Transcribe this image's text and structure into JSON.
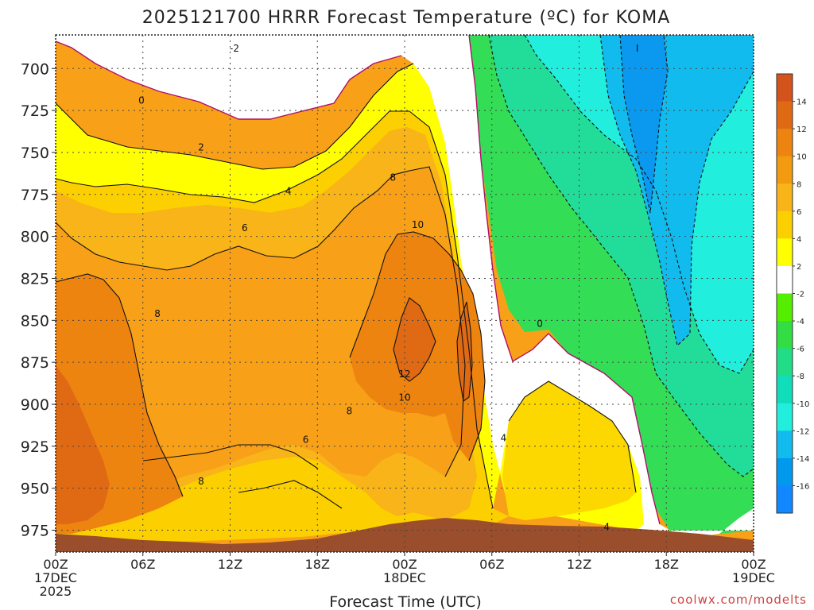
{
  "chart_data": {
    "type": "heatmap",
    "title": "2025121700 HRRR Forecast Temperature (ºC) for KOMA",
    "xlabel": "Forecast Time (UTC)",
    "ylabel": "",
    "y_axis": {
      "ticks": [
        "700",
        "725",
        "750",
        "775",
        "800",
        "825",
        "850",
        "875",
        "900",
        "925",
        "950",
        "975"
      ],
      "range": [
        680,
        988
      ],
      "inverted": true
    },
    "x_axis": {
      "range_hours": [
        0,
        48
      ],
      "ticks": [
        {
          "hour": 0,
          "lines": [
            "00Z",
            "17DEC",
            "2025"
          ]
        },
        {
          "hour": 6,
          "lines": [
            "06Z"
          ]
        },
        {
          "hour": 12,
          "lines": [
            "12Z"
          ]
        },
        {
          "hour": 18,
          "lines": [
            "18Z"
          ]
        },
        {
          "hour": 24,
          "lines": [
            "00Z",
            "18DEC"
          ]
        },
        {
          "hour": 30,
          "lines": [
            "06Z"
          ]
        },
        {
          "hour": 36,
          "lines": [
            "12Z"
          ]
        },
        {
          "hour": 42,
          "lines": [
            "18Z"
          ]
        },
        {
          "hour": 48,
          "lines": [
            "00Z",
            "19DEC"
          ]
        }
      ]
    },
    "grid": true,
    "colorbar": {
      "labels": [
        "14",
        "12",
        "10",
        "8",
        "6",
        "4",
        "2",
        "-2",
        "-4",
        "-6",
        "-8",
        "-10",
        "-12",
        "-14",
        "-16"
      ],
      "colors": [
        "#d4521c",
        "#e06a14",
        "#ee8410",
        "#f29a10",
        "#f8b418",
        "#fcd000",
        "#ffff00",
        "#ffffff",
        "#55ee00",
        "#33dd44",
        "#22dd88",
        "#11ddbb",
        "#22eedd",
        "#11bbee",
        "#0099ee",
        "#1188ff"
      ],
      "placement": "right"
    },
    "contour_labels": [
      {
        "text": "-2",
        "hour": 12.3,
        "p": 688
      },
      {
        "text": "0",
        "hour": 5.9,
        "p": 719
      },
      {
        "text": "2",
        "hour": 10.0,
        "p": 747
      },
      {
        "text": "4",
        "hour": 16.0,
        "p": 773
      },
      {
        "text": "6",
        "hour": 13.0,
        "p": 795
      },
      {
        "text": "8",
        "hour": 7.0,
        "p": 846
      },
      {
        "text": "8",
        "hour": 23.2,
        "p": 765
      },
      {
        "text": "10",
        "hour": 24.9,
        "p": 793
      },
      {
        "text": "12",
        "hour": 24.0,
        "p": 882
      },
      {
        "text": "10",
        "hour": 24.0,
        "p": 896
      },
      {
        "text": "8",
        "hour": 20.2,
        "p": 904
      },
      {
        "text": "6",
        "hour": 17.2,
        "p": 921
      },
      {
        "text": "8",
        "hour": 10.0,
        "p": 946
      },
      {
        "text": "4",
        "hour": 30.8,
        "p": 920
      },
      {
        "text": "0",
        "hour": 33.3,
        "p": 852
      },
      {
        "text": "4",
        "hour": 37.9,
        "p": 973
      },
      {
        "text": "I",
        "hour": 40.0,
        "p": 688
      }
    ],
    "colors": {
      "ground": "#9a4e2b",
      "zero_line": "#b0106a"
    }
  },
  "credit": "coolwx.com/modelts"
}
